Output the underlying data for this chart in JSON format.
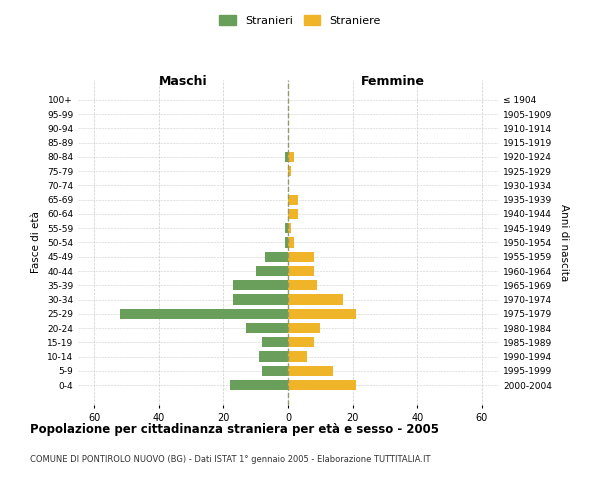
{
  "age_groups": [
    "0-4",
    "5-9",
    "10-14",
    "15-19",
    "20-24",
    "25-29",
    "30-34",
    "35-39",
    "40-44",
    "45-49",
    "50-54",
    "55-59",
    "60-64",
    "65-69",
    "70-74",
    "75-79",
    "80-84",
    "85-89",
    "90-94",
    "95-99",
    "100+"
  ],
  "birth_years": [
    "2000-2004",
    "1995-1999",
    "1990-1994",
    "1985-1989",
    "1980-1984",
    "1975-1979",
    "1970-1974",
    "1965-1969",
    "1960-1964",
    "1955-1959",
    "1950-1954",
    "1945-1949",
    "1940-1944",
    "1935-1939",
    "1930-1934",
    "1925-1929",
    "1920-1924",
    "1915-1919",
    "1910-1914",
    "1905-1909",
    "≤ 1904"
  ],
  "maschi": [
    18,
    8,
    9,
    8,
    13,
    52,
    17,
    17,
    10,
    7,
    1,
    1,
    0,
    0,
    0,
    0,
    1,
    0,
    0,
    0,
    0
  ],
  "femmine": [
    21,
    14,
    6,
    8,
    10,
    21,
    17,
    9,
    8,
    8,
    2,
    1,
    3,
    3,
    0,
    1,
    2,
    0,
    0,
    0,
    0
  ],
  "maschi_color": "#6a9e5b",
  "femmine_color": "#f0b429",
  "center_line_color": "#999966",
  "grid_color": "#cccccc",
  "title": "Popolazione per cittadinanza straniera per età e sesso - 2005",
  "subtitle": "COMUNE DI PONTIROLO NUOVO (BG) - Dati ISTAT 1° gennaio 2005 - Elaborazione TUTTITALIA.IT",
  "xlabel_left": "Maschi",
  "xlabel_right": "Femmine",
  "ylabel_left": "Fasce di età",
  "ylabel_right": "Anni di nascita",
  "legend_maschi": "Stranieri",
  "legend_femmine": "Straniere",
  "xlim": 65,
  "background_color": "#ffffff"
}
